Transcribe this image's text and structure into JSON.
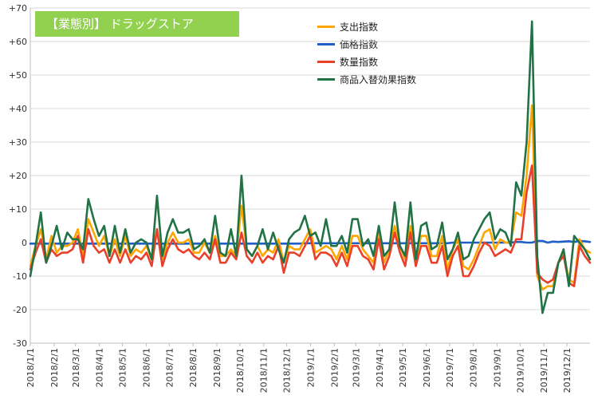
{
  "chart_data": {
    "type": "line",
    "title": "【業態別】 ドラッグストア",
    "xlabel": "",
    "ylabel": "",
    "ylim": [
      -30,
      70
    ],
    "yticks": [
      -30,
      -20,
      -10,
      0,
      10,
      20,
      30,
      40,
      50,
      60,
      70
    ],
    "ytick_labels": [
      "-30",
      "-20",
      "-10",
      "0",
      "+10",
      "+20",
      "+30",
      "+40",
      "+50",
      "+60",
      "+70"
    ],
    "x_tick_labels": [
      "2018/1/1",
      "2018/2/1",
      "2018/3/1",
      "2018/4/1",
      "2018/5/1",
      "2018/6/1",
      "2018/7/1",
      "2018/8/1",
      "2018/9/1",
      "2018/10/1",
      "2018/11/1",
      "2018/12/1",
      "2019/1/1",
      "2019/2/1",
      "2019/3/1",
      "2019/4/1",
      "2019/5/1",
      "2019/6/1",
      "2019/7/1",
      "2019/8/1",
      "2019/9/1",
      "2019/10/1",
      "2019/11/1",
      "2019/12/1"
    ],
    "x_start": "2018/1/1",
    "x_end": "2019/12/31",
    "frequency": "weekly",
    "grid": "horizontal",
    "legend_position": "top-center",
    "series": [
      {
        "name": "支出指数",
        "color": "#ffa500",
        "values": [
          -7,
          -1,
          4,
          -5,
          2,
          -3,
          -1,
          -1,
          0,
          4,
          -4,
          7,
          3,
          -1,
          2,
          -4,
          1,
          -4,
          2,
          -4,
          -2,
          -3,
          -1,
          -5,
          4,
          -5,
          0,
          3,
          0,
          0,
          1,
          -3,
          -3,
          0,
          -3,
          2,
          -4,
          -4,
          -2,
          -4,
          11,
          -2,
          -4,
          -1,
          -4,
          -2,
          -3,
          1,
          -6,
          -1,
          -2,
          -2,
          1,
          4,
          -3,
          -2,
          -1,
          -2,
          -5,
          -1,
          -5,
          2,
          2,
          -2,
          -4,
          -6,
          3,
          -6,
          -2,
          5,
          -1,
          -5,
          5,
          -5,
          2,
          2,
          -4,
          -4,
          2,
          -8,
          -2,
          1,
          -7,
          -8,
          -5,
          -1,
          3,
          4,
          -2,
          1,
          0,
          0,
          9,
          8,
          20,
          41,
          -10,
          -14,
          -13,
          -13,
          -6,
          -3,
          -11,
          -12,
          1,
          -2,
          -3
        ]
      },
      {
        "name": "価格指数",
        "color": "#1f5fc8",
        "values": [
          -0.3,
          -0.3,
          -0.3,
          -0.3,
          -0.3,
          -0.3,
          -0.3,
          -0.3,
          -0.3,
          -0.3,
          -0.3,
          -0.3,
          -0.3,
          -0.3,
          -0.3,
          -0.3,
          -0.3,
          -0.3,
          -0.3,
          -0.3,
          -0.3,
          -0.3,
          -0.3,
          -0.3,
          -0.3,
          -0.3,
          -0.3,
          -0.3,
          -0.3,
          -0.3,
          -0.3,
          -0.3,
          -0.3,
          -0.3,
          -0.3,
          -0.3,
          -0.3,
          -0.3,
          -0.3,
          -0.3,
          -0.3,
          -0.3,
          -0.3,
          -0.3,
          -0.3,
          -0.3,
          -0.3,
          -0.3,
          -0.3,
          -0.3,
          -0.3,
          -0.3,
          -0.2,
          -0.2,
          -0.2,
          -0.2,
          -0.2,
          -0.2,
          -0.2,
          -0.2,
          -0.2,
          -0.2,
          -0.2,
          -0.2,
          -0.2,
          -0.2,
          -0.2,
          -0.2,
          -0.2,
          -0.2,
          -0.2,
          -0.2,
          -0.2,
          -0.2,
          -0.2,
          -0.2,
          -0.2,
          -0.2,
          -0.2,
          -0.2,
          0,
          0,
          0,
          0,
          0,
          0,
          0,
          0,
          0,
          0,
          0,
          0,
          0.2,
          0.2,
          0,
          0,
          0.5,
          0.5,
          0,
          0.3,
          0.2,
          0.3,
          0.4,
          0.2,
          0.5,
          0.4,
          0.2
        ]
      },
      {
        "name": "数量指数",
        "color": "#e8402a",
        "values": [
          -8,
          -3,
          1,
          -6,
          -2,
          -4,
          -3,
          -3,
          -2,
          2,
          -6,
          4,
          -1,
          -3,
          -2,
          -6,
          -2,
          -6,
          -2,
          -6,
          -4,
          -5,
          -3,
          -7,
          4,
          -7,
          -2,
          1,
          -2,
          -3,
          -2,
          -4,
          -5,
          -3,
          -5,
          1,
          -6,
          -6,
          -3,
          -5,
          3,
          -4,
          -6,
          -3,
          -6,
          -4,
          -5,
          -1,
          -9,
          -3,
          -3,
          -4,
          -1,
          2,
          -5,
          -3,
          -3,
          -4,
          -7,
          -3,
          -7,
          -1,
          -1,
          -4,
          -5,
          -8,
          1,
          -8,
          -4,
          3,
          -3,
          -7,
          3,
          -7,
          -1,
          -1,
          -6,
          -6,
          -1,
          -10,
          -4,
          -1,
          -10,
          -10,
          -7,
          -3,
          0,
          -1,
          -4,
          -3,
          -2,
          -3,
          1,
          1,
          15,
          23,
          -9,
          -11,
          -12,
          -11,
          -6,
          -4,
          -12,
          -13,
          -1,
          -4,
          -6
        ]
      },
      {
        "name": "商品入替効果指数",
        "color": "#217346",
        "values": [
          -10,
          -1,
          9,
          -6,
          -1,
          5,
          -2,
          3,
          1,
          1,
          -2,
          13,
          7,
          2,
          5,
          -4,
          5,
          -3,
          4,
          -3,
          0,
          1,
          0,
          -5,
          14,
          -4,
          3,
          7,
          3,
          3,
          4,
          -2,
          -1,
          1,
          -3,
          8,
          -3,
          -4,
          4,
          -4,
          20,
          -2,
          -4,
          -1,
          4,
          -2,
          3,
          -2,
          -6,
          1,
          3,
          4,
          8,
          2,
          3,
          -1,
          7,
          -1,
          -1,
          2,
          -3,
          7,
          7,
          -1,
          1,
          -4,
          5,
          -4,
          -2,
          12,
          -1,
          -4,
          12,
          -5,
          5,
          6,
          -2,
          -1,
          6,
          -5,
          -2,
          3,
          -5,
          -4,
          1,
          4,
          7,
          9,
          1,
          4,
          3,
          -1,
          18,
          14,
          30,
          66,
          -4,
          -21,
          -15,
          -15,
          -6,
          -2,
          -13,
          2,
          0,
          -2,
          -5
        ]
      }
    ]
  }
}
